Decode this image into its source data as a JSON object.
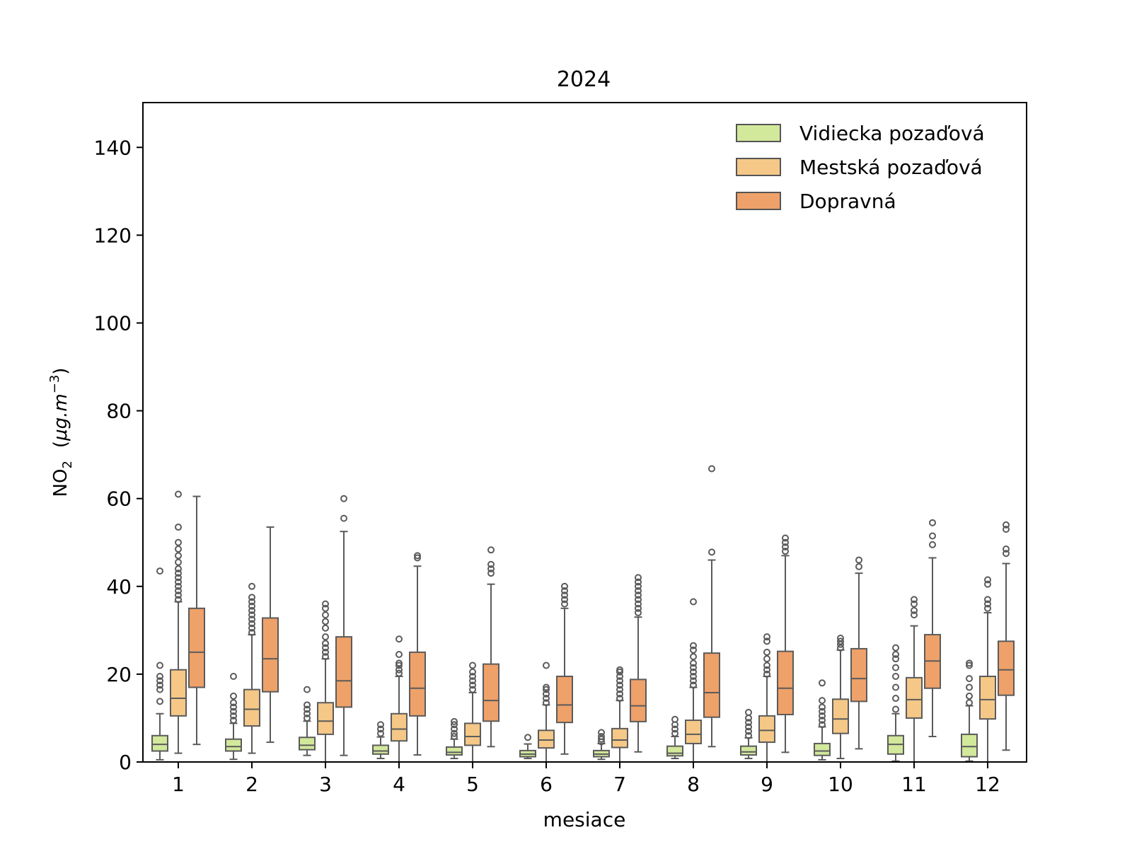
{
  "chart_data": {
    "type": "boxplot",
    "title": "2024",
    "xlabel": "mesiace",
    "ylabel_main": "NO",
    "ylabel_sub": "2",
    "ylabel_unit_open": "(",
    "ylabel_unit_mu": "μg.m",
    "ylabel_unit_sup": "−3",
    "ylabel_unit_close": ")",
    "ylim": [
      0,
      150
    ],
    "yticks": [
      0,
      20,
      40,
      60,
      80,
      100,
      120,
      140
    ],
    "categories": [
      "1",
      "2",
      "3",
      "4",
      "5",
      "6",
      "7",
      "8",
      "9",
      "10",
      "11",
      "12"
    ],
    "legend_position": "top-right",
    "grid": false,
    "series": [
      {
        "name": "Vidiecka pozaďová",
        "color": "#d2e89b",
        "boxes": [
          {
            "whislo": 0.5,
            "q1": 2.5,
            "med": 4,
            "q3": 6,
            "whishi": 11,
            "fliers": [
              13.8,
              16.5,
              17.5,
              18.5,
              19.5,
              22,
              43.5
            ]
          },
          {
            "whislo": 0.6,
            "q1": 2.5,
            "med": 3.5,
            "q3": 5.2,
            "whishi": 8.8,
            "fliers": [
              9.5,
              10.5,
              11.5,
              12.5,
              13.5,
              15,
              19.5
            ]
          },
          {
            "whislo": 1.5,
            "q1": 2.8,
            "med": 3.8,
            "q3": 5.6,
            "whishi": 9.3,
            "fliers": [
              10,
              11,
              12,
              13,
              16.5
            ]
          },
          {
            "whislo": 0.8,
            "q1": 1.8,
            "med": 2.5,
            "q3": 3.8,
            "whishi": 5.7,
            "fliers": [
              6.5,
              7.5,
              8.5
            ]
          },
          {
            "whislo": 0.8,
            "q1": 1.6,
            "med": 2.2,
            "q3": 3.4,
            "whishi": 5.2,
            "fliers": [
              5.8,
              6.5,
              7.5,
              8.5,
              9.2
            ]
          },
          {
            "whislo": 0.8,
            "q1": 1.2,
            "med": 1.8,
            "q3": 2.6,
            "whishi": 4.1,
            "fliers": [
              5.6
            ]
          },
          {
            "whislo": 0.6,
            "q1": 1.2,
            "med": 1.8,
            "q3": 2.6,
            "whishi": 4.2,
            "fliers": [
              4.6,
              5.2,
              5.8,
              6.7
            ]
          },
          {
            "whislo": 0.8,
            "q1": 1.4,
            "med": 2.0,
            "q3": 3.6,
            "whishi": 5.8,
            "fliers": [
              6.5,
              7.5,
              8.5,
              9.7
            ]
          },
          {
            "whislo": 0.8,
            "q1": 1.6,
            "med": 2.3,
            "q3": 3.6,
            "whishi": 5.5,
            "fliers": [
              6,
              7,
              8,
              9,
              10,
              11.3
            ]
          },
          {
            "whislo": 0.5,
            "q1": 1.5,
            "med": 2.5,
            "q3": 4.2,
            "whishi": 8,
            "fliers": [
              8.5,
              9.5,
              10.5,
              11.5,
              12.5,
              14,
              18
            ]
          },
          {
            "whislo": 0.2,
            "q1": 1.8,
            "med": 4.0,
            "q3": 6.0,
            "whishi": 11,
            "fliers": [
              12,
              14.5,
              17,
              19.5,
              21.5,
              23.5,
              24.5,
              26
            ]
          },
          {
            "whislo": 0.2,
            "q1": 1.2,
            "med": 3.5,
            "q3": 6.3,
            "whishi": 12.8,
            "fliers": [
              13.5,
              15,
              17,
              19,
              22,
              22.5
            ]
          }
        ]
      },
      {
        "name": "Mestská pozaďová",
        "color": "#f5c887",
        "boxes": [
          {
            "whislo": 2,
            "q1": 10.5,
            "med": 14.5,
            "q3": 21,
            "whishi": 36.5,
            "fliers": [
              37,
              38,
              39,
              40,
              41,
              42,
              43,
              44,
              45.5,
              47,
              48.5,
              50,
              53.5,
              61
            ]
          },
          {
            "whislo": 2,
            "q1": 8.2,
            "med": 12,
            "q3": 16.5,
            "whishi": 29,
            "fliers": [
              29.5,
              30.5,
              31.5,
              32.5,
              33.5,
              34.5,
              35.5,
              36.5,
              37.5,
              40
            ]
          },
          {
            "whislo": 0,
            "q1": 6.3,
            "med": 9.3,
            "q3": 13.5,
            "whishi": 23.5,
            "fliers": [
              24,
              25,
              26,
              27,
              28.5,
              30.5,
              32,
              33.5,
              35,
              36
            ]
          },
          {
            "whislo": 0,
            "q1": 4.8,
            "med": 7.5,
            "q3": 11,
            "whishi": 19.5,
            "fliers": [
              20.2,
              21,
              22,
              22.5,
              24.5,
              28
            ]
          },
          {
            "whislo": 0,
            "q1": 3.8,
            "med": 5.8,
            "q3": 8.8,
            "whishi": 15.8,
            "fliers": [
              16.5,
              17.5,
              18.5,
              19.5,
              20.5,
              22
            ]
          },
          {
            "whislo": 0,
            "q1": 3.2,
            "med": 5.0,
            "q3": 7.2,
            "whishi": 13,
            "fliers": [
              13.5,
              14.5,
              15.5,
              16.5,
              17,
              22
            ]
          },
          {
            "whislo": 0,
            "q1": 3.3,
            "med": 5.0,
            "q3": 7.6,
            "whishi": 14,
            "fliers": [
              14.5,
              15.5,
              16.5,
              17.5,
              18.5,
              19.5,
              20.5,
              21
            ]
          },
          {
            "whislo": 0,
            "q1": 4.2,
            "med": 6.3,
            "q3": 9.5,
            "whishi": 17,
            "fliers": [
              17.5,
              18.5,
              19.5,
              20.5,
              21.5,
              22.5,
              24,
              25.5,
              26.5,
              36.5
            ]
          },
          {
            "whislo": 0,
            "q1": 4.5,
            "med": 7.2,
            "q3": 10.5,
            "whishi": 19.5,
            "fliers": [
              20,
              21,
              22,
              23.5,
              25,
              27.5,
              28.5
            ]
          },
          {
            "whislo": 0.8,
            "q1": 6.5,
            "med": 9.8,
            "q3": 14.3,
            "whishi": 25.5,
            "fliers": [
              26,
              26.8,
              27.5,
              28.2
            ]
          },
          {
            "whislo": 0,
            "q1": 10,
            "med": 14.2,
            "q3": 19.2,
            "whishi": 31,
            "fliers": [
              33.5,
              34.5,
              36,
              37
            ]
          },
          {
            "whislo": 0,
            "q1": 9.8,
            "med": 14.2,
            "q3": 19.5,
            "whishi": 34,
            "fliers": [
              35,
              36,
              37,
              40.5,
              41.5
            ]
          }
        ]
      },
      {
        "name": "Dopravná",
        "color": "#eea169",
        "boxes": [
          {
            "whislo": 4,
            "q1": 17,
            "med": 25,
            "q3": 35,
            "whishi": 60.5,
            "fliers": []
          },
          {
            "whislo": 4.5,
            "q1": 16,
            "med": 23.5,
            "q3": 32.8,
            "whishi": 53.5,
            "fliers": []
          },
          {
            "whislo": 1.5,
            "q1": 12.5,
            "med": 18.5,
            "q3": 28.5,
            "whishi": 52.5,
            "fliers": [
              55.5,
              60
            ]
          },
          {
            "whislo": 1.6,
            "q1": 10.5,
            "med": 16.8,
            "q3": 25,
            "whishi": 44.6,
            "fliers": [
              46.5,
              47
            ]
          },
          {
            "whislo": 3.5,
            "q1": 9.3,
            "med": 14,
            "q3": 22.3,
            "whishi": 40.5,
            "fliers": [
              43,
              44,
              45,
              48.3
            ]
          },
          {
            "whislo": 1.8,
            "q1": 9,
            "med": 13,
            "q3": 19.5,
            "whishi": 35,
            "fliers": [
              36,
              37,
              38,
              39,
              40
            ]
          },
          {
            "whislo": 2.3,
            "q1": 9.2,
            "med": 12.8,
            "q3": 18.8,
            "whishi": 33,
            "fliers": [
              34,
              35,
              36,
              37,
              38,
              39,
              40,
              41,
              42
            ]
          },
          {
            "whislo": 3.5,
            "q1": 10.2,
            "med": 15.8,
            "q3": 24.8,
            "whishi": 46,
            "fliers": [
              47.8,
              66.8
            ]
          },
          {
            "whislo": 2.2,
            "q1": 10.8,
            "med": 16.8,
            "q3": 25.2,
            "whishi": 47,
            "fliers": [
              48,
              49,
              50,
              51
            ]
          },
          {
            "whislo": 3,
            "q1": 13.8,
            "med": 19,
            "q3": 25.8,
            "whishi": 43,
            "fliers": [
              44.5,
              46
            ]
          },
          {
            "whislo": 5.8,
            "q1": 16.8,
            "med": 23,
            "q3": 29,
            "whishi": 46.5,
            "fliers": [
              49.5,
              51.5,
              54.5
            ]
          },
          {
            "whislo": 2.7,
            "q1": 15.2,
            "med": 21,
            "q3": 27.5,
            "whishi": 45.2,
            "fliers": [
              47.5,
              48.5,
              53,
              54
            ]
          }
        ]
      }
    ]
  }
}
